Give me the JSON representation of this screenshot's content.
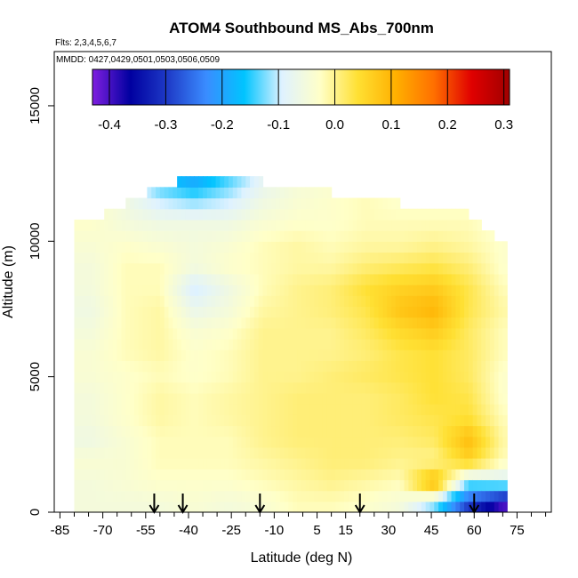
{
  "chart_data": {
    "type": "heatmap",
    "title": "ATOM4 Southbound MS_Abs_700nm",
    "flights_label": "Flts: 2,3,4,5,6,7",
    "mmdd_label": "MMDD: 0427,0429,0501,0503,0506,0509",
    "xlabel": "Latitude (deg N)",
    "ylabel": "Altitude (m)",
    "xlim": [
      -87,
      87
    ],
    "ylim": [
      0,
      17000
    ],
    "x_ticks": [
      -85,
      -70,
      -55,
      -40,
      -25,
      -10,
      5,
      15,
      30,
      45,
      60,
      75
    ],
    "x_minor_ticks": [
      -80,
      -75,
      -65,
      -60,
      -50,
      -45,
      -35,
      -30,
      -20,
      -15,
      -5,
      0,
      10,
      20,
      25,
      35,
      40,
      50,
      55,
      65,
      70,
      80,
      85
    ],
    "y_ticks": [
      0,
      5000,
      10000,
      15000
    ],
    "colorbar": {
      "ticks": [
        "-0.4",
        "-0.3",
        "-0.2",
        "-0.1",
        "0.0",
        "0.1",
        "0.2",
        "0.3"
      ],
      "tick_values": [
        -0.4,
        -0.3,
        -0.2,
        -0.1,
        0.0,
        0.1,
        0.2,
        0.3
      ],
      "range": [
        -0.43,
        0.31
      ],
      "colors": [
        "#7f1fe0",
        "#0000a0",
        "#1f3cc8",
        "#3a8cff",
        "#00c4ff",
        "#dff2ff",
        "#ffffc8",
        "#ffe033",
        "#ffb000",
        "#ff7000",
        "#e00000",
        "#a00000"
      ]
    },
    "profiles": [
      {
        "lat": -74,
        "top": 10800,
        "bottom": 0,
        "level_values": [
          -0.05,
          -0.05,
          -0.04,
          -0.06,
          -0.05,
          -0.05,
          -0.04,
          -0.04,
          -0.05,
          -0.06,
          -0.05,
          -0.05,
          -0.04,
          -0.03,
          -0.03,
          -0.02
        ]
      },
      {
        "lat": -62,
        "top": 11400,
        "bottom": 0,
        "level_values": [
          -0.05,
          -0.04,
          -0.04,
          -0.04,
          -0.03,
          -0.03,
          -0.03,
          -0.02,
          -0.02,
          -0.02,
          -0.02,
          -0.02,
          -0.03,
          -0.05,
          -0.06,
          -0.06
        ]
      },
      {
        "lat": -50,
        "top": 12000,
        "bottom": 0,
        "level_values": [
          -0.05,
          -0.03,
          -0.02,
          -0.02,
          -0.01,
          -0.01,
          -0.02,
          -0.01,
          -0.01,
          -0.01,
          -0.02,
          -0.02,
          -0.04,
          -0.06,
          -0.1,
          -0.16
        ]
      },
      {
        "lat": -38,
        "top": 12400,
        "bottom": 0,
        "level_values": [
          -0.04,
          -0.03,
          -0.02,
          -0.02,
          -0.02,
          -0.02,
          -0.03,
          -0.03,
          -0.04,
          -0.07,
          -0.1,
          -0.05,
          -0.05,
          -0.06,
          -0.12,
          -0.2
        ]
      },
      {
        "lat": -26,
        "top": 12400,
        "bottom": 0,
        "level_values": [
          -0.05,
          -0.03,
          -0.02,
          -0.02,
          -0.01,
          -0.01,
          -0.02,
          -0.02,
          -0.03,
          -0.05,
          -0.06,
          -0.03,
          -0.04,
          -0.06,
          -0.1,
          -0.14
        ]
      },
      {
        "lat": -14,
        "top": 12200,
        "bottom": 0,
        "level_values": [
          -0.04,
          -0.02,
          -0.01,
          0.0,
          0.0,
          0.0,
          0.0,
          0.0,
          0.0,
          -0.01,
          -0.02,
          -0.02,
          -0.02,
          -0.04,
          -0.06,
          -0.08
        ]
      },
      {
        "lat": -2,
        "top": 11800,
        "bottom": 0,
        "level_values": [
          -0.02,
          -0.01,
          0.0,
          0.01,
          0.01,
          0.01,
          0.0,
          0.0,
          0.0,
          0.0,
          0.0,
          -0.01,
          -0.01,
          -0.03,
          -0.04,
          -0.05
        ]
      },
      {
        "lat": 10,
        "top": 11800,
        "bottom": 0,
        "level_values": [
          -0.02,
          0.0,
          0.01,
          0.01,
          0.01,
          0.01,
          0.01,
          0.0,
          0.0,
          0.01,
          0.01,
          -0.01,
          -0.02,
          -0.03,
          -0.03,
          -0.04
        ]
      },
      {
        "lat": 22,
        "top": 11600,
        "bottom": 0,
        "level_values": [
          -0.03,
          -0.01,
          0.01,
          0.01,
          0.01,
          0.01,
          0.02,
          0.01,
          0.02,
          0.03,
          0.04,
          0.01,
          -0.01,
          -0.02,
          -0.02,
          -0.03
        ]
      },
      {
        "lat": 34,
        "top": 11400,
        "bottom": 0,
        "level_values": [
          -0.05,
          -0.02,
          0.0,
          0.01,
          0.02,
          0.02,
          0.03,
          0.03,
          0.05,
          0.08,
          0.06,
          0.02,
          -0.01,
          -0.02,
          -0.03,
          -0.03
        ]
      },
      {
        "lat": 46,
        "top": 11200,
        "bottom": 0,
        "level_values": [
          -0.12,
          0.1,
          0.0,
          0.02,
          0.03,
          0.04,
          0.04,
          0.04,
          0.07,
          0.1,
          0.07,
          0.03,
          0.0,
          -0.02,
          -0.03,
          -0.03
        ]
      },
      {
        "lat": 58,
        "top": 11000,
        "bottom": 0,
        "level_values": [
          -0.3,
          -0.12,
          0.06,
          0.09,
          0.04,
          0.03,
          0.02,
          0.02,
          0.02,
          0.03,
          0.03,
          0.01,
          -0.01,
          -0.02,
          -0.03,
          -0.03
        ]
      },
      {
        "lat": 70,
        "top": 10000,
        "bottom": 0,
        "level_values": [
          -0.4,
          -0.1,
          -0.02,
          -0.01,
          -0.02,
          -0.03,
          -0.03,
          -0.02,
          -0.02,
          -0.01,
          -0.02,
          -0.03,
          -0.03,
          -0.04,
          -0.04,
          -0.05
        ]
      }
    ],
    "level_altitudes": [
      300,
      1100,
      1900,
      2700,
      3500,
      4300,
      5100,
      5900,
      6700,
      7500,
      8300,
      9100,
      9900,
      10700,
      11500,
      12300
    ],
    "arrows": [
      {
        "lat": -52
      },
      {
        "lat": -42
      },
      {
        "lat": -15
      },
      {
        "lat": 20
      },
      {
        "lat": 60
      }
    ]
  }
}
